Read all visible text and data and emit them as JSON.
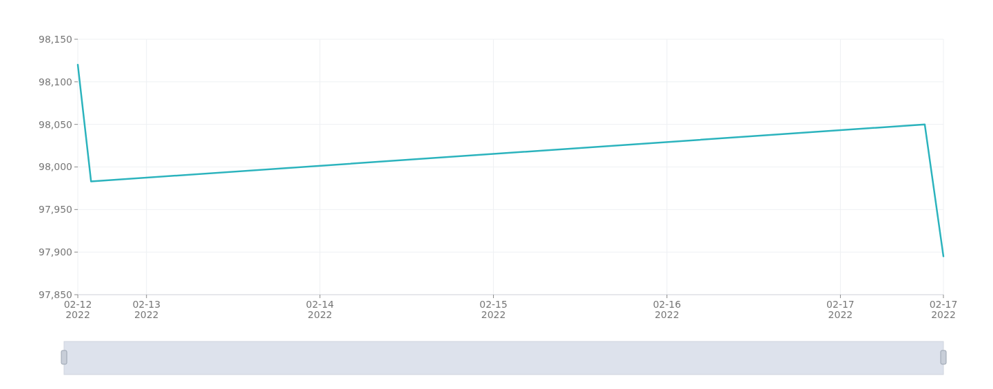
{
  "chart_data": {
    "type": "line",
    "x": [
      "2022-02-12T14:30",
      "2022-02-12T16:20",
      "2022-02-17T11:40",
      "2022-02-17T14:15"
    ],
    "series": [
      {
        "color": "#2bb3bd",
        "values": [
          98120,
          97983,
          98050,
          97895
        ]
      }
    ],
    "xlim": [
      "2022-02-12T14:30",
      "2022-02-17T14:15"
    ],
    "xticks": [
      {
        "value": "2022-02-12T14:30",
        "label": "02-12\n2022"
      },
      {
        "value": "2022-02-13",
        "label": "02-13\n2022"
      },
      {
        "value": "2022-02-14",
        "label": "02-14\n2022"
      },
      {
        "value": "2022-02-15",
        "label": "02-15\n2022"
      },
      {
        "value": "2022-02-16",
        "label": "02-16\n2022"
      },
      {
        "value": "2022-02-17",
        "label": "02-17\n2022"
      },
      {
        "value": "2022-02-17T14:15",
        "label": "02-17\n2022"
      }
    ],
    "ylim": [
      97850,
      98150
    ],
    "yticks": [
      {
        "value": 97850,
        "label": "97,850"
      },
      {
        "value": 97900,
        "label": "97,900"
      },
      {
        "value": 97950,
        "label": "97,950"
      },
      {
        "value": 98000,
        "label": "98,000"
      },
      {
        "value": 98050,
        "label": "98,050"
      },
      {
        "value": 98100,
        "label": "98,100"
      },
      {
        "value": 98150,
        "label": "98,150"
      }
    ],
    "grid": true,
    "marker": "none",
    "line_style": "solid"
  }
}
